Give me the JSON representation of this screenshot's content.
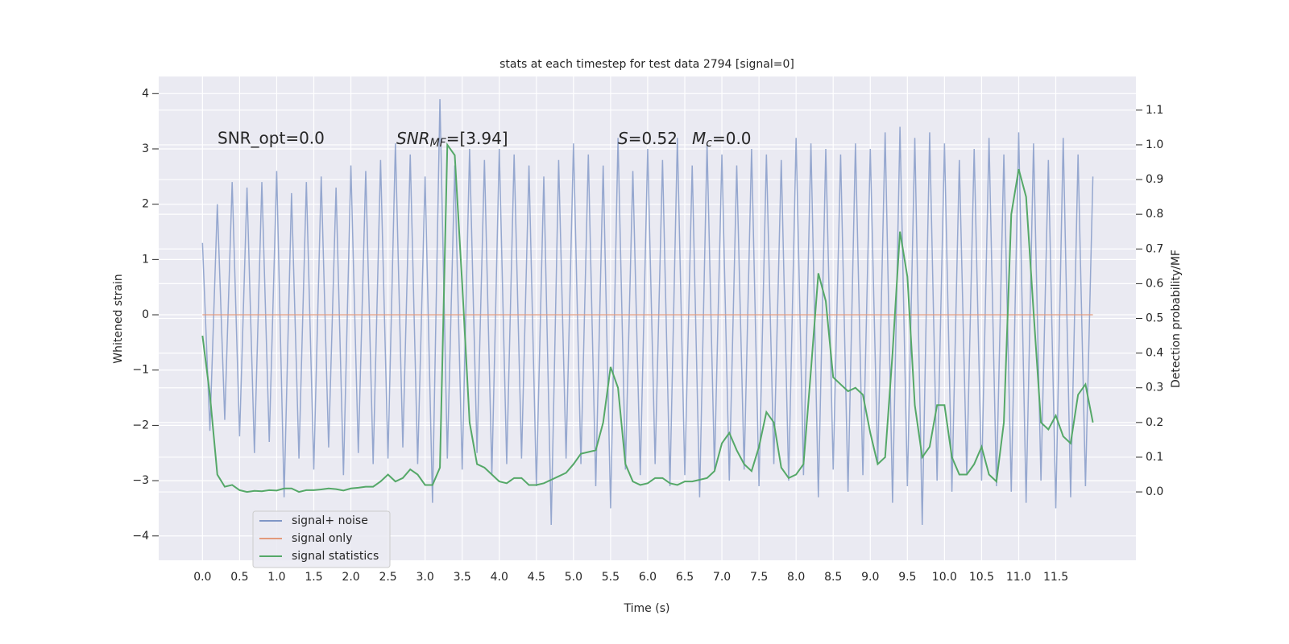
{
  "chart_data": {
    "type": "line",
    "title": "stats at each timestep for test data 2794 [signal=0]",
    "xlabel": "Time (s)",
    "ylabel": "Whitened strain",
    "y2label": "Detection probability/MF",
    "annotations": [
      "SNR_opt=0.0",
      [
        "SNR",
        "MF",
        "=[3.94]"
      ],
      [
        "S",
        "=0.52"
      ],
      [
        "M",
        "c",
        "=0.0"
      ]
    ],
    "x": [
      0,
      0.1,
      0.2,
      0.3,
      0.4,
      0.5,
      0.6,
      0.7,
      0.8,
      0.9,
      1,
      1.1,
      1.2,
      1.3,
      1.4,
      1.5,
      1.6,
      1.7,
      1.8,
      1.9,
      2,
      2.1,
      2.2,
      2.3,
      2.4,
      2.5,
      2.6,
      2.7,
      2.8,
      2.9,
      3,
      3.1,
      3.2,
      3.3,
      3.4,
      3.5,
      3.6,
      3.7,
      3.8,
      3.9,
      4,
      4.1,
      4.2,
      4.3,
      4.4,
      4.5,
      4.6,
      4.7,
      4.8,
      4.9,
      5,
      5.1,
      5.2,
      5.3,
      5.4,
      5.5,
      5.6,
      5.7,
      5.8,
      5.9,
      6,
      6.1,
      6.2,
      6.3,
      6.4,
      6.5,
      6.6,
      6.7,
      6.8,
      6.9,
      7,
      7.1,
      7.2,
      7.3,
      7.4,
      7.5,
      7.6,
      7.7,
      7.8,
      7.9,
      8,
      8.1,
      8.2,
      8.3,
      8.4,
      8.5,
      8.6,
      8.7,
      8.8,
      8.9,
      9,
      9.1,
      9.2,
      9.3,
      9.4,
      9.5,
      9.6,
      9.7,
      9.8,
      9.9,
      10,
      10.1,
      10.2,
      10.3,
      10.4,
      10.5,
      10.6,
      10.7,
      10.8,
      10.9,
      11,
      11.1,
      11.2,
      11.3,
      11.4,
      11.5,
      11.6,
      11.7,
      11.8,
      11.9,
      12
    ],
    "series": [
      {
        "name": "signal+ noise",
        "color": "#7f96c6",
        "values": [
          1.3,
          -2.1,
          2.0,
          -1.9,
          2.4,
          -2.2,
          2.3,
          -2.5,
          2.4,
          -2.3,
          2.6,
          -3.3,
          2.2,
          -2.6,
          2.4,
          -2.8,
          2.5,
          -2.4,
          2.3,
          -2.9,
          2.7,
          -2.5,
          2.6,
          -2.7,
          2.8,
          -2.6,
          3.1,
          -2.4,
          2.9,
          -2.7,
          2.5,
          -3.4,
          3.9,
          -2.6,
          2.7,
          -2.8,
          3.0,
          -2.5,
          2.8,
          -2.9,
          3.0,
          -2.7,
          2.9,
          -2.6,
          2.7,
          -3.1,
          2.5,
          -3.8,
          2.8,
          -2.6,
          3.1,
          -2.7,
          2.9,
          -3.1,
          2.7,
          -3.5,
          3.2,
          -2.8,
          2.6,
          -2.9,
          3.0,
          -2.7,
          2.8,
          -3.1,
          3.2,
          -2.9,
          2.7,
          -3.3,
          3.1,
          -2.8,
          2.9,
          -3.0,
          2.7,
          -2.8,
          3.0,
          -3.1,
          2.9,
          -2.7,
          2.8,
          -3.0,
          3.2,
          -2.9,
          3.1,
          -3.3,
          3.0,
          -2.8,
          2.9,
          -3.2,
          3.1,
          -2.9,
          3.0,
          -2.7,
          3.3,
          -3.4,
          3.4,
          -3.1,
          3.2,
          -3.8,
          3.3,
          -3.0,
          3.1,
          -3.2,
          2.8,
          -2.9,
          3.0,
          -3.0,
          3.2,
          -3.1,
          2.9,
          -3.2,
          3.3,
          -3.4,
          3.1,
          -3.0,
          2.8,
          -3.5,
          3.2,
          -3.3,
          2.9,
          -3.1,
          2.5
        ]
      },
      {
        "name": "signal only",
        "color": "#e39a7c",
        "values": [
          0,
          0,
          0,
          0,
          0,
          0,
          0,
          0,
          0,
          0,
          0,
          0,
          0,
          0,
          0,
          0,
          0,
          0,
          0,
          0,
          0,
          0,
          0,
          0,
          0,
          0,
          0,
          0,
          0,
          0,
          0,
          0,
          0,
          0,
          0,
          0,
          0,
          0,
          0,
          0,
          0,
          0,
          0,
          0,
          0,
          0,
          0,
          0,
          0,
          0,
          0,
          0,
          0,
          0,
          0,
          0,
          0,
          0,
          0,
          0,
          0,
          0,
          0,
          0,
          0,
          0,
          0,
          0,
          0,
          0,
          0,
          0,
          0,
          0,
          0,
          0,
          0,
          0,
          0,
          0,
          0,
          0,
          0,
          0,
          0,
          0,
          0,
          0,
          0,
          0,
          0,
          0,
          0,
          0,
          0,
          0,
          0,
          0,
          0,
          0,
          0,
          0,
          0,
          0,
          0,
          0,
          0,
          0,
          0,
          0,
          0,
          0,
          0,
          0,
          0,
          0,
          0,
          0,
          0,
          0,
          0
        ]
      },
      {
        "name": "signal statistics",
        "color": "#55a868",
        "axis": "y2",
        "values": [
          0.45,
          0.28,
          0.05,
          0.015,
          0.02,
          0.005,
          0.0,
          0.003,
          0.002,
          0.005,
          0.004,
          0.01,
          0.01,
          0.0,
          0.005,
          0.005,
          0.007,
          0.01,
          0.008,
          0.004,
          0.01,
          0.012,
          0.015,
          0.015,
          0.03,
          0.05,
          0.03,
          0.04,
          0.065,
          0.05,
          0.02,
          0.02,
          0.07,
          1.0,
          0.97,
          0.6,
          0.2,
          0.08,
          0.07,
          0.05,
          0.03,
          0.025,
          0.04,
          0.04,
          0.02,
          0.02,
          0.025,
          0.035,
          0.045,
          0.055,
          0.08,
          0.11,
          0.115,
          0.12,
          0.2,
          0.36,
          0.3,
          0.08,
          0.03,
          0.02,
          0.025,
          0.04,
          0.04,
          0.025,
          0.02,
          0.03,
          0.03,
          0.035,
          0.04,
          0.06,
          0.14,
          0.17,
          0.12,
          0.08,
          0.06,
          0.13,
          0.23,
          0.2,
          0.07,
          0.04,
          0.05,
          0.08,
          0.35,
          0.63,
          0.55,
          0.33,
          0.31,
          0.29,
          0.3,
          0.28,
          0.17,
          0.08,
          0.1,
          0.4,
          0.75,
          0.62,
          0.25,
          0.1,
          0.13,
          0.25,
          0.25,
          0.1,
          0.05,
          0.05,
          0.08,
          0.13,
          0.05,
          0.03,
          0.2,
          0.8,
          0.93,
          0.85,
          0.52,
          0.2,
          0.18,
          0.22,
          0.16,
          0.14,
          0.28,
          0.31,
          0.2
        ]
      }
    ],
    "xlim": [
      -0.59,
      12.58
    ],
    "ylim": [
      -4.44,
      4.31
    ],
    "y2lim": [
      -0.197,
      1.197
    ],
    "xticks": [
      {
        "value": 0,
        "label": "0.0"
      },
      0.5,
      {
        "value": 1,
        "label": "1.0"
      },
      1.5,
      {
        "value": 2,
        "label": "2.0"
      },
      2.5,
      {
        "value": 3,
        "label": "3.0"
      },
      3.5,
      {
        "value": 4,
        "label": "4.0"
      },
      4.5,
      {
        "value": 5,
        "label": "5.0"
      },
      5.5,
      {
        "value": 6,
        "label": "6.0"
      },
      6.5,
      {
        "value": 7,
        "label": "7.0"
      },
      7.5,
      {
        "value": 8,
        "label": "8.0"
      },
      8.5,
      {
        "value": 9,
        "label": "9.0"
      },
      9.5,
      {
        "value": 10,
        "label": "10.0"
      },
      10.5,
      {
        "value": 11,
        "label": "11.0"
      },
      11.5
    ],
    "yticks": [
      {
        "value": -4,
        "label": "−4"
      },
      {
        "value": -3,
        "label": "−3"
      },
      {
        "value": -2,
        "label": "−2"
      },
      {
        "value": -1,
        "label": "−1"
      },
      0,
      1,
      2,
      3,
      4
    ],
    "y2ticks": [
      {
        "value": 0,
        "label": "0.0"
      },
      0.1,
      0.2,
      0.3,
      0.4,
      0.5,
      0.6,
      0.7,
      0.8,
      0.9,
      {
        "value": 1,
        "label": "1.0"
      },
      1.1
    ],
    "grid": true,
    "legend": "lower left"
  }
}
